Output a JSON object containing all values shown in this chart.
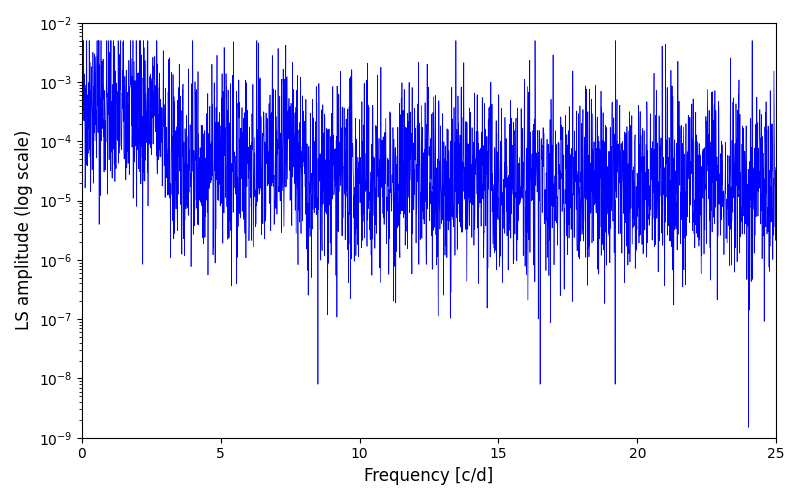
{
  "title": "",
  "xlabel": "Frequency [c/d]",
  "ylabel": "LS amplitude (log scale)",
  "xlim": [
    0,
    25
  ],
  "ylim": [
    1e-09,
    0.01
  ],
  "line_color": "blue",
  "background_color": "#ffffff",
  "figsize": [
    8.0,
    5.0
  ],
  "dpi": 100,
  "n_points": 3000,
  "freq_max": 25.0,
  "seed": 42
}
